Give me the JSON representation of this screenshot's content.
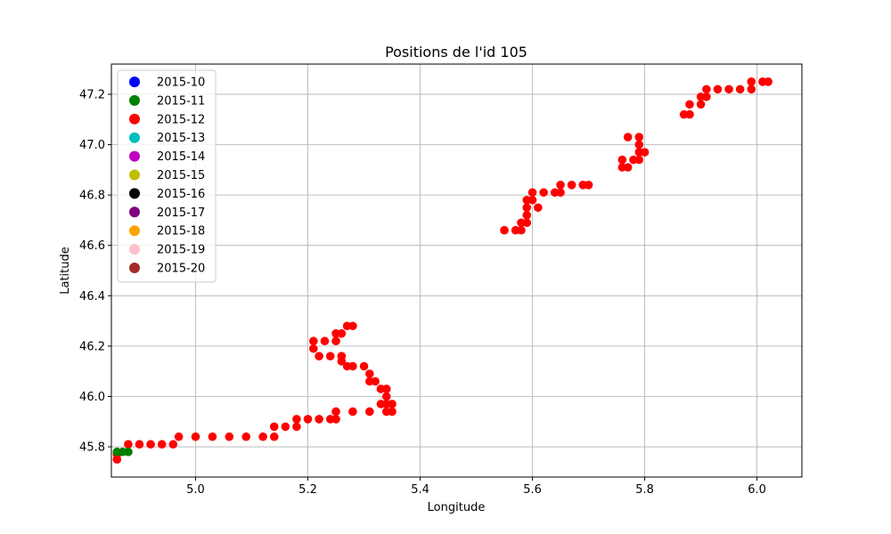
{
  "chart_data": {
    "type": "scatter",
    "title": "Positions de l'id 105",
    "xlabel": "Longitude",
    "ylabel": "Latitude",
    "xlim": [
      4.85,
      6.08
    ],
    "ylim": [
      45.68,
      47.32
    ],
    "xticks": [
      "5.0",
      "5.2",
      "5.4",
      "5.6",
      "5.8",
      "6.0"
    ],
    "yticks": [
      "45.8",
      "46.0",
      "46.2",
      "46.4",
      "46.6",
      "46.8",
      "47.0",
      "47.2"
    ],
    "grid": true,
    "legend_placement": "upper-left",
    "series": [
      {
        "name": "2015-10",
        "color": "#0000ff",
        "points": []
      },
      {
        "name": "2015-11",
        "color": "#008000",
        "points": [
          [
            4.86,
            45.78
          ],
          [
            4.87,
            45.78
          ],
          [
            4.88,
            45.78
          ]
        ]
      },
      {
        "name": "2015-12",
        "color": "#ff0000",
        "points": [
          [
            4.86,
            45.75
          ],
          [
            4.86,
            45.77
          ],
          [
            4.88,
            45.78
          ],
          [
            4.88,
            45.81
          ],
          [
            4.9,
            45.81
          ],
          [
            4.92,
            45.81
          ],
          [
            4.94,
            45.81
          ],
          [
            4.96,
            45.81
          ],
          [
            4.97,
            45.84
          ],
          [
            5.0,
            45.84
          ],
          [
            5.03,
            45.84
          ],
          [
            5.06,
            45.84
          ],
          [
            5.09,
            45.84
          ],
          [
            5.12,
            45.84
          ],
          [
            5.14,
            45.84
          ],
          [
            5.14,
            45.88
          ],
          [
            5.16,
            45.88
          ],
          [
            5.18,
            45.88
          ],
          [
            5.18,
            45.91
          ],
          [
            5.2,
            45.91
          ],
          [
            5.22,
            45.91
          ],
          [
            5.24,
            45.91
          ],
          [
            5.25,
            45.91
          ],
          [
            5.25,
            45.94
          ],
          [
            5.28,
            45.94
          ],
          [
            5.31,
            45.94
          ],
          [
            5.34,
            45.94
          ],
          [
            5.35,
            45.94
          ],
          [
            5.35,
            45.97
          ],
          [
            5.34,
            45.97
          ],
          [
            5.33,
            45.97
          ],
          [
            5.34,
            46.0
          ],
          [
            5.34,
            46.03
          ],
          [
            5.33,
            46.03
          ],
          [
            5.32,
            46.06
          ],
          [
            5.31,
            46.06
          ],
          [
            5.31,
            46.09
          ],
          [
            5.3,
            46.12
          ],
          [
            5.28,
            46.12
          ],
          [
            5.27,
            46.12
          ],
          [
            5.26,
            46.14
          ],
          [
            5.26,
            46.16
          ],
          [
            5.24,
            46.16
          ],
          [
            5.22,
            46.16
          ],
          [
            5.21,
            46.19
          ],
          [
            5.21,
            46.22
          ],
          [
            5.23,
            46.22
          ],
          [
            5.25,
            46.22
          ],
          [
            5.25,
            46.25
          ],
          [
            5.26,
            46.25
          ],
          [
            5.27,
            46.28
          ],
          [
            5.28,
            46.28
          ],
          [
            5.55,
            46.66
          ],
          [
            5.57,
            46.66
          ],
          [
            5.58,
            46.66
          ],
          [
            5.58,
            46.69
          ],
          [
            5.59,
            46.69
          ],
          [
            5.59,
            46.72
          ],
          [
            5.59,
            46.75
          ],
          [
            5.61,
            46.75
          ],
          [
            5.59,
            46.78
          ],
          [
            5.6,
            46.78
          ],
          [
            5.6,
            46.81
          ],
          [
            5.62,
            46.81
          ],
          [
            5.64,
            46.81
          ],
          [
            5.65,
            46.81
          ],
          [
            5.65,
            46.84
          ],
          [
            5.67,
            46.84
          ],
          [
            5.69,
            46.84
          ],
          [
            5.7,
            46.84
          ],
          [
            5.76,
            46.91
          ],
          [
            5.77,
            46.91
          ],
          [
            5.76,
            46.94
          ],
          [
            5.78,
            46.94
          ],
          [
            5.79,
            46.94
          ],
          [
            5.79,
            46.97
          ],
          [
            5.8,
            46.97
          ],
          [
            5.79,
            47.0
          ],
          [
            5.77,
            47.03
          ],
          [
            5.79,
            47.03
          ],
          [
            5.87,
            47.12
          ],
          [
            5.88,
            47.12
          ],
          [
            5.88,
            47.16
          ],
          [
            5.9,
            47.16
          ],
          [
            5.9,
            47.19
          ],
          [
            5.91,
            47.19
          ],
          [
            5.91,
            47.22
          ],
          [
            5.93,
            47.22
          ],
          [
            5.95,
            47.22
          ],
          [
            5.97,
            47.22
          ],
          [
            5.99,
            47.22
          ],
          [
            5.99,
            47.25
          ],
          [
            6.01,
            47.25
          ],
          [
            6.02,
            47.25
          ]
        ]
      },
      {
        "name": "2015-13",
        "color": "#00bfbf",
        "points": []
      },
      {
        "name": "2015-14",
        "color": "#bf00bf",
        "points": []
      },
      {
        "name": "2015-15",
        "color": "#bfbf00",
        "points": []
      },
      {
        "name": "2015-16",
        "color": "#000000",
        "points": []
      },
      {
        "name": "2015-17",
        "color": "#800080",
        "points": []
      },
      {
        "name": "2015-18",
        "color": "#ffa500",
        "points": []
      },
      {
        "name": "2015-19",
        "color": "#ffc0cb",
        "points": []
      },
      {
        "name": "2015-20",
        "color": "#a52a2a",
        "points": []
      }
    ]
  }
}
